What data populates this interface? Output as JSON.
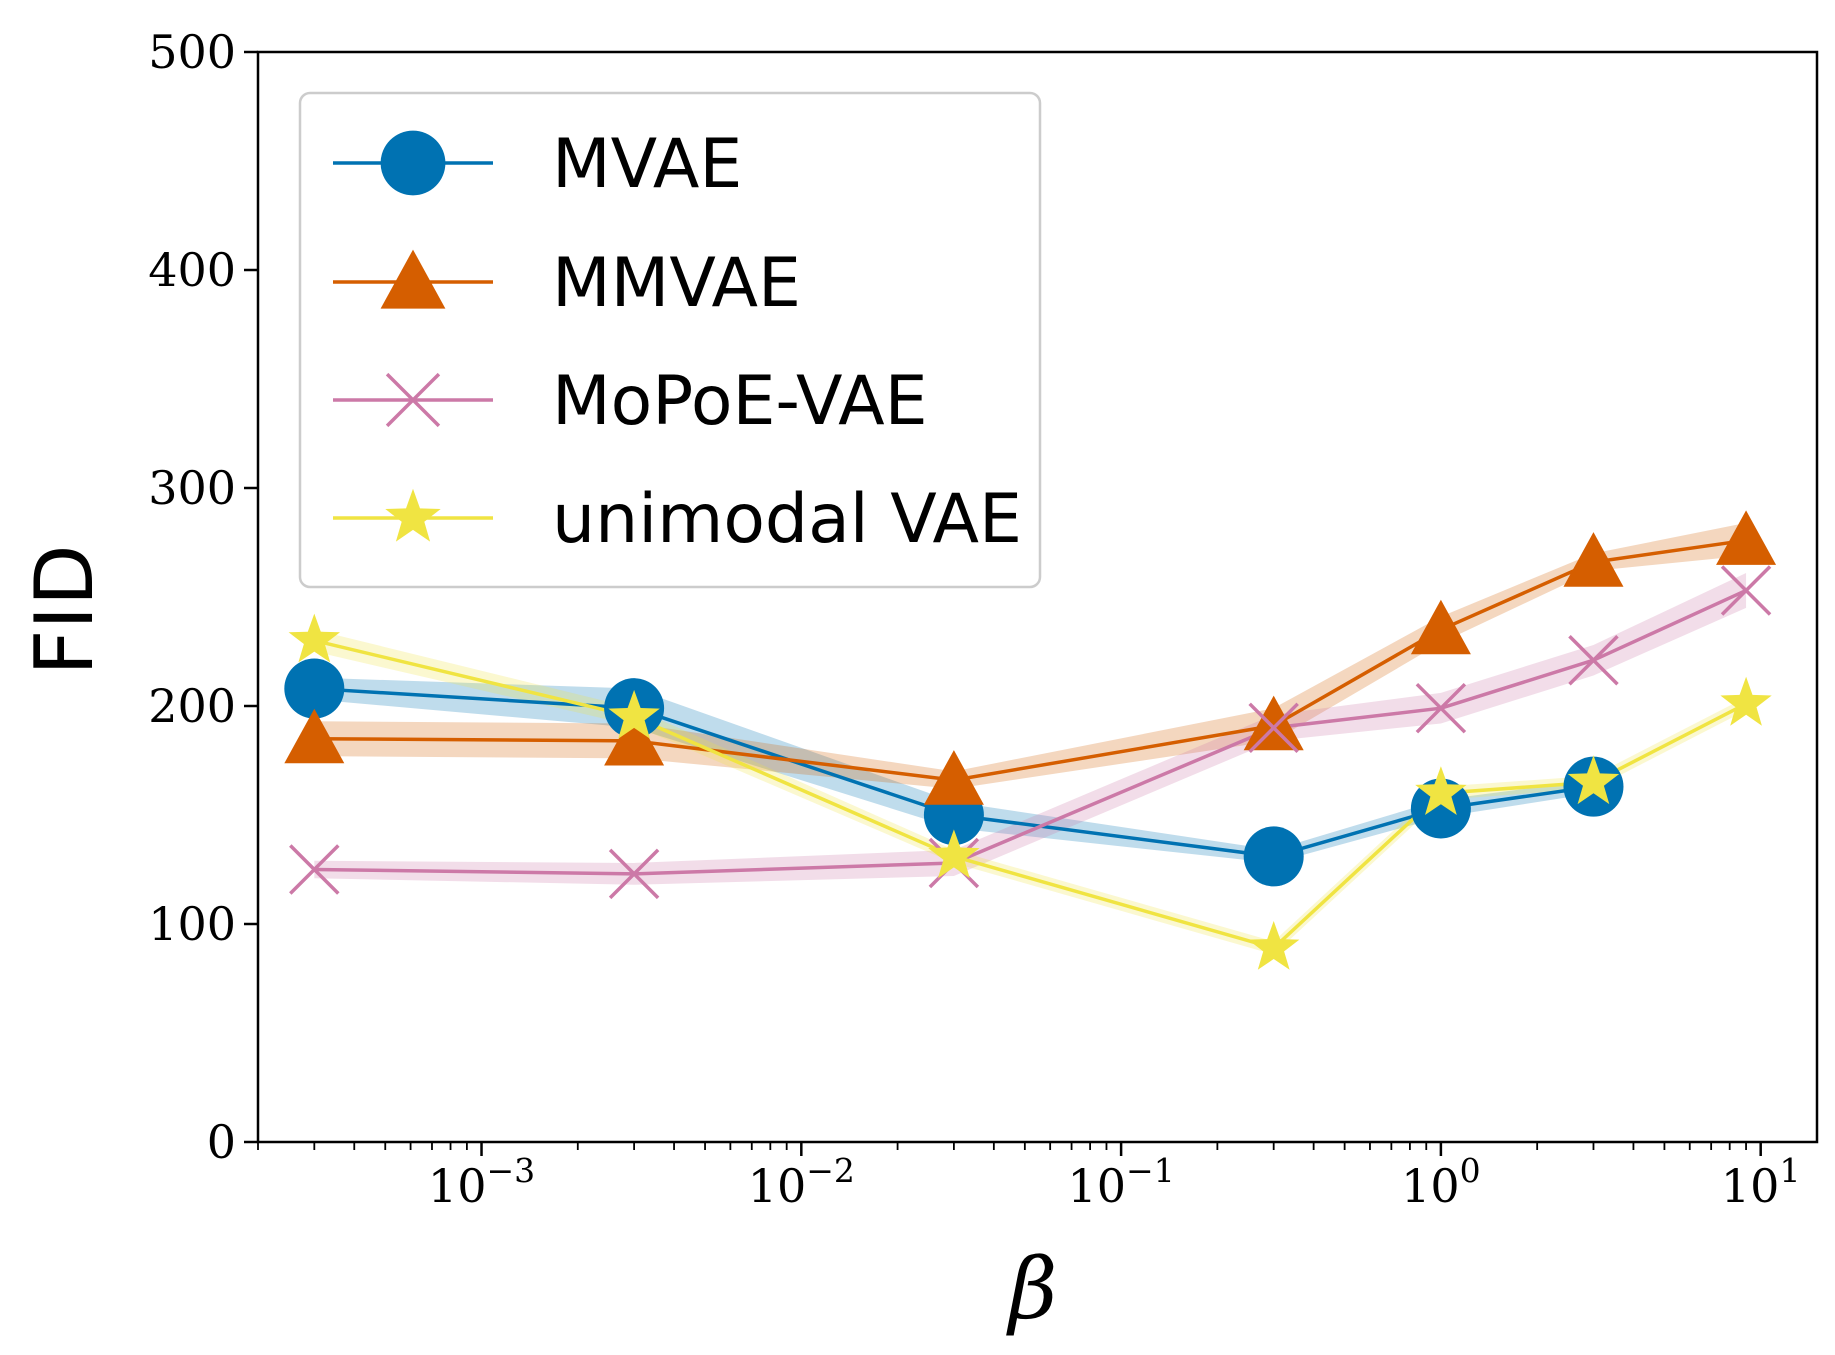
{
  "chart_data": {
    "type": "line",
    "title": "",
    "xlabel": "β",
    "ylabel": "FID",
    "xscale": "log",
    "xlim": [
      0.0002,
      15
    ],
    "ylim": [
      0,
      500
    ],
    "yticks": [
      0,
      100,
      200,
      300,
      400,
      500
    ],
    "xticks": [
      {
        "value": 0.001,
        "base": "10",
        "exp": "−3"
      },
      {
        "value": 0.01,
        "base": "10",
        "exp": "−2"
      },
      {
        "value": 0.1,
        "base": "10",
        "exp": "−1"
      },
      {
        "value": 1,
        "base": "10",
        "exp": "0"
      },
      {
        "value": 10,
        "base": "10",
        "exp": "1"
      }
    ],
    "legend_position": "top-left",
    "x": [
      0.0003,
      0.003,
      0.03,
      0.3,
      1,
      3,
      9
    ],
    "series": [
      {
        "name": "MVAE",
        "color": "#0072B2",
        "marker": "circle",
        "values": [
          208,
          199,
          150,
          131,
          153,
          163,
          null
        ],
        "band": [
          [
            203,
            213
          ],
          [
            190,
            208
          ],
          [
            144,
            156
          ],
          [
            128,
            134
          ],
          [
            149,
            157
          ],
          [
            160,
            166
          ],
          [
            null,
            null
          ]
        ]
      },
      {
        "name": "MMVAE",
        "color": "#D55E00",
        "marker": "triangle",
        "values": [
          185,
          184,
          166,
          191,
          235,
          266,
          276
        ],
        "band": [
          [
            177,
            193
          ],
          [
            176,
            192
          ],
          [
            162,
            170
          ],
          [
            184,
            199
          ],
          [
            229,
            241
          ],
          [
            262,
            270
          ],
          [
            269,
            284
          ]
        ]
      },
      {
        "name": "MoPoE-VAE",
        "color": "#CC79A7",
        "marker": "x",
        "values": [
          125,
          123,
          128,
          190,
          199,
          221,
          253
        ],
        "band": [
          [
            121,
            129
          ],
          [
            118,
            128
          ],
          [
            122,
            134
          ],
          [
            184,
            196
          ],
          [
            192,
            206
          ],
          [
            214,
            228
          ],
          [
            245,
            261
          ]
        ]
      },
      {
        "name": "unimodal VAE",
        "color": "#F0E442",
        "marker": "star",
        "values": [
          230,
          195,
          131,
          89,
          160,
          165,
          201
        ],
        "band": [
          [
            225,
            235
          ],
          [
            191,
            199
          ],
          [
            128,
            134
          ],
          [
            86,
            92
          ],
          [
            157,
            163
          ],
          [
            162,
            168
          ],
          [
            198,
            204
          ]
        ]
      }
    ]
  }
}
